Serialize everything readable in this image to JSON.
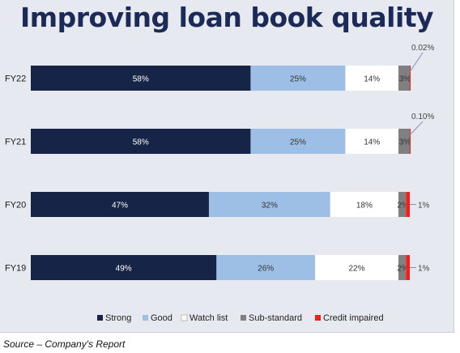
{
  "chart_data": {
    "type": "bar",
    "orientation": "horizontal",
    "stacked": true,
    "title": "Improving loan book quality",
    "categories": [
      "FY22",
      "FY21",
      "FY20",
      "FY19"
    ],
    "series": [
      {
        "name": "Strong",
        "color": "#152447",
        "values": [
          58,
          58,
          47,
          49
        ],
        "labels": [
          "58%",
          "58%",
          "47%",
          "49%"
        ]
      },
      {
        "name": "Good",
        "color": "#9dbfe6",
        "values": [
          25,
          25,
          32,
          26
        ],
        "labels": [
          "25%",
          "25%",
          "32%",
          "26%"
        ]
      },
      {
        "name": "Watch list",
        "color": "#ffffff",
        "values": [
          14,
          14,
          18,
          22
        ],
        "labels": [
          "14%",
          "14%",
          "18%",
          "22%"
        ]
      },
      {
        "name": "Sub-standard",
        "color": "#808080",
        "values": [
          3,
          3,
          2,
          2
        ],
        "labels": [
          "3%",
          "3%",
          "2%",
          "2%"
        ]
      },
      {
        "name": "Credit impaired",
        "color": "#ff1a1a",
        "values": [
          0.02,
          0.1,
          1,
          1
        ],
        "labels": [
          "0.02%",
          "0.10%",
          "1%",
          "1%"
        ]
      }
    ],
    "xlim": [
      0,
      100
    ],
    "legend_position": "bottom",
    "grid": false
  },
  "source_note": "Source – Company's Report"
}
